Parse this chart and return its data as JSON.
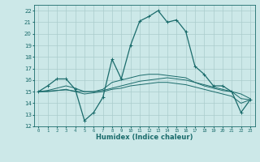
{
  "xlabel": "Humidex (Indice chaleur)",
  "bg_color": "#cce8e8",
  "grid_color": "#aacccc",
  "line_color": "#1a6b6b",
  "xlim": [
    -0.5,
    23.5
  ],
  "ylim": [
    12,
    22.5
  ],
  "xticks": [
    0,
    1,
    2,
    3,
    4,
    5,
    6,
    7,
    8,
    9,
    10,
    11,
    12,
    13,
    14,
    15,
    16,
    17,
    18,
    19,
    20,
    21,
    22,
    23
  ],
  "yticks": [
    12,
    13,
    14,
    15,
    16,
    17,
    18,
    19,
    20,
    21,
    22
  ],
  "curve1": [
    15.0,
    15.5,
    16.1,
    16.1,
    15.2,
    12.5,
    13.2,
    14.5,
    17.8,
    16.1,
    19.0,
    21.1,
    21.5,
    22.0,
    21.0,
    21.2,
    20.2,
    17.2,
    16.5,
    15.5,
    15.5,
    15.0,
    13.2,
    14.3
  ],
  "curve2": [
    15.0,
    15.05,
    15.1,
    15.15,
    15.05,
    15.0,
    15.0,
    15.1,
    15.3,
    15.5,
    15.7,
    15.9,
    16.0,
    16.1,
    16.2,
    16.1,
    16.0,
    15.8,
    15.6,
    15.4,
    15.2,
    15.0,
    14.4,
    14.3
  ],
  "curve3": [
    15.0,
    15.1,
    15.3,
    15.5,
    15.3,
    15.0,
    15.0,
    15.2,
    15.8,
    16.0,
    16.2,
    16.4,
    16.5,
    16.5,
    16.4,
    16.3,
    16.2,
    15.8,
    15.5,
    15.3,
    15.1,
    15.0,
    14.8,
    14.4
  ],
  "curve4": [
    15.0,
    15.0,
    15.1,
    15.2,
    15.0,
    14.8,
    14.9,
    15.0,
    15.2,
    15.3,
    15.5,
    15.6,
    15.7,
    15.8,
    15.8,
    15.7,
    15.6,
    15.4,
    15.2,
    15.0,
    14.8,
    14.6,
    14.0,
    14.3
  ]
}
